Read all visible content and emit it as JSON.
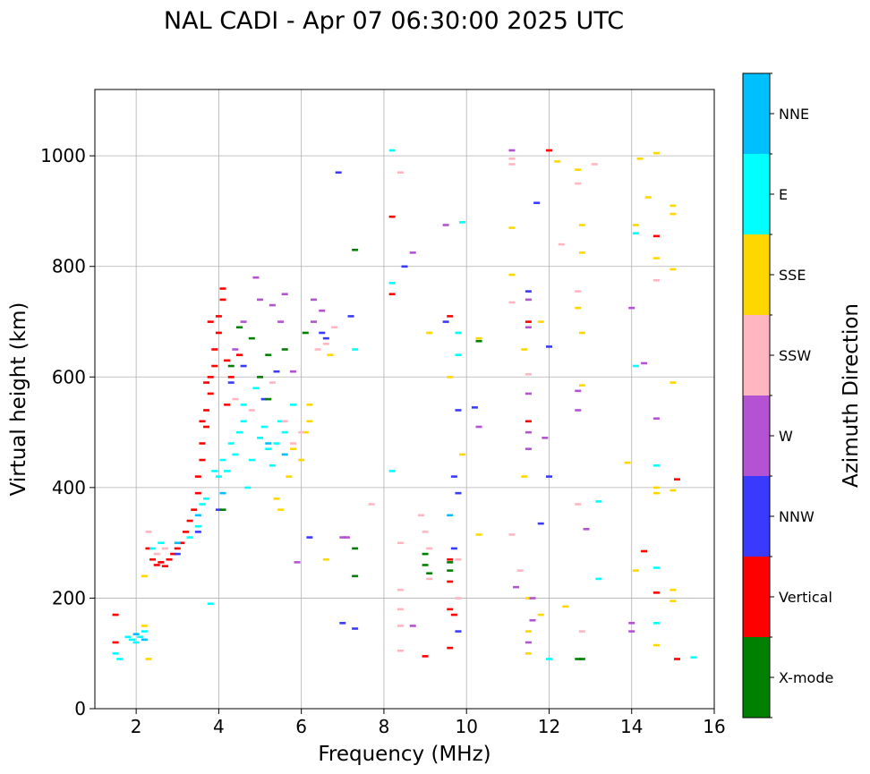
{
  "chart_data": {
    "type": "scatter",
    "title": "NAL CADI - Apr 07 06:30:00 2025 UTC",
    "xlabel": "Frequency (MHz)",
    "ylabel": "Virtual height (km)",
    "xlim": [
      1,
      16
    ],
    "ylim": [
      0,
      1120
    ],
    "xticks": [
      2,
      4,
      6,
      8,
      10,
      12,
      14,
      16
    ],
    "yticks": [
      0,
      200,
      400,
      600,
      800,
      1000
    ],
    "grid": true,
    "colorbar": {
      "title": "Azimuth Direction",
      "categories": [
        {
          "name": "X-mode",
          "color": "#008000"
        },
        {
          "name": "Vertical",
          "color": "#ff0000"
        },
        {
          "name": "NNW",
          "color": "#3a3aff"
        },
        {
          "name": "W",
          "color": "#b452d4"
        },
        {
          "name": "SSW",
          "color": "#ffb6c1"
        },
        {
          "name": "SSE",
          "color": "#ffd700"
        },
        {
          "name": "E",
          "color": "#00ffff"
        },
        {
          "name": "NNE",
          "color": "#00bfff"
        }
      ]
    },
    "series": [
      {
        "name": "Vertical",
        "points": [
          [
            1.5,
            120
          ],
          [
            1.5,
            170
          ],
          [
            2.3,
            290
          ],
          [
            2.4,
            270
          ],
          [
            2.5,
            260
          ],
          [
            2.6,
            265
          ],
          [
            2.7,
            258
          ],
          [
            2.8,
            270
          ],
          [
            2.9,
            280
          ],
          [
            3.0,
            290
          ],
          [
            3.1,
            300
          ],
          [
            3.2,
            320
          ],
          [
            3.3,
            340
          ],
          [
            3.4,
            360
          ],
          [
            3.5,
            390
          ],
          [
            3.5,
            420
          ],
          [
            3.6,
            450
          ],
          [
            3.6,
            480
          ],
          [
            3.7,
            510
          ],
          [
            3.7,
            540
          ],
          [
            3.8,
            570
          ],
          [
            3.8,
            600
          ],
          [
            3.9,
            620
          ],
          [
            3.9,
            650
          ],
          [
            4.0,
            680
          ],
          [
            4.0,
            710
          ],
          [
            4.1,
            740
          ],
          [
            4.1,
            760
          ],
          [
            4.2,
            630
          ],
          [
            4.3,
            600
          ],
          [
            4.2,
            550
          ],
          [
            4.5,
            640
          ],
          [
            3.7,
            590
          ],
          [
            3.6,
            520
          ],
          [
            3.8,
            700
          ],
          [
            8.2,
            750
          ],
          [
            8.2,
            890
          ],
          [
            9.6,
            710
          ],
          [
            9.6,
            270
          ],
          [
            9.6,
            230
          ],
          [
            9.6,
            180
          ],
          [
            9.7,
            170
          ],
          [
            9.6,
            110
          ],
          [
            9.0,
            95
          ],
          [
            11.5,
            700
          ],
          [
            11.5,
            520
          ],
          [
            12.0,
            1010
          ],
          [
            14.3,
            285
          ],
          [
            14.6,
            855
          ],
          [
            14.6,
            210
          ],
          [
            15.1,
            415
          ],
          [
            15.1,
            90
          ]
        ]
      },
      {
        "name": "E",
        "points": [
          [
            1.5,
            100
          ],
          [
            1.6,
            90
          ],
          [
            1.8,
            130
          ],
          [
            1.9,
            125
          ],
          [
            2.0,
            120
          ],
          [
            2.1,
            130
          ],
          [
            2.2,
            140
          ],
          [
            2.4,
            290
          ],
          [
            2.6,
            300
          ],
          [
            3.3,
            310
          ],
          [
            3.5,
            330
          ],
          [
            3.6,
            370
          ],
          [
            3.7,
            380
          ],
          [
            3.8,
            190
          ],
          [
            3.9,
            430
          ],
          [
            4.0,
            420
          ],
          [
            4.1,
            450
          ],
          [
            4.2,
            430
          ],
          [
            4.3,
            480
          ],
          [
            4.4,
            460
          ],
          [
            4.5,
            500
          ],
          [
            4.6,
            520
          ],
          [
            4.7,
            400
          ],
          [
            4.8,
            450
          ],
          [
            5.0,
            490
          ],
          [
            5.1,
            510
          ],
          [
            5.2,
            470
          ],
          [
            5.3,
            440
          ],
          [
            5.4,
            480
          ],
          [
            5.5,
            520
          ],
          [
            5.6,
            500
          ],
          [
            5.8,
            550
          ],
          [
            4.6,
            550
          ],
          [
            4.9,
            580
          ],
          [
            8.2,
            770
          ],
          [
            8.2,
            430
          ],
          [
            8.2,
            1010
          ],
          [
            9.8,
            680
          ],
          [
            9.8,
            640
          ],
          [
            9.9,
            880
          ],
          [
            12.0,
            90
          ],
          [
            14.1,
            860
          ],
          [
            14.1,
            620
          ],
          [
            14.6,
            440
          ],
          [
            14.6,
            255
          ],
          [
            14.6,
            155
          ],
          [
            15.5,
            93
          ],
          [
            13.2,
            235
          ],
          [
            13.2,
            375
          ],
          [
            7.3,
            650
          ]
        ]
      },
      {
        "name": "NNE",
        "points": [
          [
            2.0,
            135
          ],
          [
            2.2,
            125
          ],
          [
            3.0,
            300
          ],
          [
            3.5,
            350
          ],
          [
            4.1,
            390
          ],
          [
            5.2,
            480
          ],
          [
            5.6,
            460
          ],
          [
            9.6,
            350
          ]
        ]
      },
      {
        "name": "SSE",
        "points": [
          [
            2.2,
            150
          ],
          [
            2.3,
            90
          ],
          [
            2.2,
            240
          ],
          [
            5.4,
            380
          ],
          [
            5.5,
            360
          ],
          [
            5.7,
            420
          ],
          [
            5.8,
            470
          ],
          [
            6.0,
            450
          ],
          [
            6.1,
            500
          ],
          [
            6.2,
            520
          ],
          [
            6.2,
            550
          ],
          [
            6.6,
            270
          ],
          [
            6.7,
            640
          ],
          [
            9.1,
            680
          ],
          [
            9.6,
            600
          ],
          [
            9.9,
            460
          ],
          [
            10.3,
            315
          ],
          [
            10.3,
            670
          ],
          [
            11.1,
            870
          ],
          [
            11.1,
            785
          ],
          [
            11.4,
            420
          ],
          [
            11.4,
            650
          ],
          [
            11.5,
            200
          ],
          [
            11.5,
            140
          ],
          [
            11.5,
            100
          ],
          [
            11.8,
            700
          ],
          [
            12.2,
            990
          ],
          [
            12.7,
            975
          ],
          [
            12.7,
            725
          ],
          [
            12.8,
            875
          ],
          [
            12.8,
            825
          ],
          [
            12.8,
            680
          ],
          [
            12.8,
            585
          ],
          [
            12.4,
            185
          ],
          [
            13.9,
            445
          ],
          [
            14.1,
            875
          ],
          [
            14.1,
            250
          ],
          [
            14.2,
            995
          ],
          [
            14.4,
            925
          ],
          [
            14.6,
            1005
          ],
          [
            14.6,
            815
          ],
          [
            14.6,
            400
          ],
          [
            14.6,
            390
          ],
          [
            14.6,
            115
          ],
          [
            15.0,
            910
          ],
          [
            15.0,
            895
          ],
          [
            15.0,
            795
          ],
          [
            15.0,
            590
          ],
          [
            15.0,
            395
          ],
          [
            15.0,
            215
          ],
          [
            15.0,
            195
          ],
          [
            11.8,
            170
          ]
        ]
      },
      {
        "name": "W",
        "points": [
          [
            4.4,
            650
          ],
          [
            4.6,
            700
          ],
          [
            4.9,
            780
          ],
          [
            5.0,
            740
          ],
          [
            5.3,
            730
          ],
          [
            5.5,
            700
          ],
          [
            5.6,
            750
          ],
          [
            5.8,
            610
          ],
          [
            6.3,
            740
          ],
          [
            6.3,
            700
          ],
          [
            6.5,
            720
          ],
          [
            5.9,
            265
          ],
          [
            7.0,
            310
          ],
          [
            7.1,
            310
          ],
          [
            8.7,
            825
          ],
          [
            9.5,
            875
          ],
          [
            11.1,
            1010
          ],
          [
            11.5,
            740
          ],
          [
            11.5,
            690
          ],
          [
            11.5,
            570
          ],
          [
            11.5,
            500
          ],
          [
            11.5,
            470
          ],
          [
            11.6,
            200
          ],
          [
            11.6,
            160
          ],
          [
            11.5,
            120
          ],
          [
            11.9,
            490
          ],
          [
            12.7,
            575
          ],
          [
            12.7,
            540
          ],
          [
            12.9,
            325
          ],
          [
            14.0,
            725
          ],
          [
            14.0,
            155
          ],
          [
            14.0,
            140
          ],
          [
            14.3,
            625
          ],
          [
            14.6,
            525
          ],
          [
            11.2,
            220
          ],
          [
            10.3,
            510
          ],
          [
            8.7,
            150
          ]
        ]
      },
      {
        "name": "NNW",
        "points": [
          [
            3.0,
            280
          ],
          [
            3.5,
            320
          ],
          [
            4.0,
            360
          ],
          [
            4.3,
            590
          ],
          [
            4.6,
            620
          ],
          [
            5.1,
            560
          ],
          [
            5.4,
            610
          ],
          [
            6.5,
            680
          ],
          [
            6.6,
            670
          ],
          [
            6.9,
            970
          ],
          [
            7.2,
            710
          ],
          [
            8.5,
            800
          ],
          [
            9.5,
            700
          ],
          [
            9.7,
            420
          ],
          [
            9.8,
            540
          ],
          [
            9.8,
            390
          ],
          [
            9.7,
            290
          ],
          [
            9.8,
            140
          ],
          [
            10.2,
            545
          ],
          [
            11.7,
            915
          ],
          [
            11.5,
            755
          ],
          [
            12.0,
            655
          ],
          [
            12.0,
            420
          ],
          [
            11.8,
            335
          ],
          [
            6.2,
            310
          ],
          [
            7.0,
            155
          ],
          [
            7.3,
            145
          ]
        ]
      },
      {
        "name": "SSW",
        "points": [
          [
            2.3,
            320
          ],
          [
            2.5,
            280
          ],
          [
            2.7,
            290
          ],
          [
            4.4,
            560
          ],
          [
            4.8,
            540
          ],
          [
            5.3,
            590
          ],
          [
            5.6,
            520
          ],
          [
            5.8,
            480
          ],
          [
            6.0,
            500
          ],
          [
            6.4,
            650
          ],
          [
            6.6,
            660
          ],
          [
            6.8,
            690
          ],
          [
            8.4,
            970
          ],
          [
            8.4,
            300
          ],
          [
            8.4,
            215
          ],
          [
            8.4,
            180
          ],
          [
            8.4,
            150
          ],
          [
            8.4,
            105
          ],
          [
            8.9,
            350
          ],
          [
            9.0,
            320
          ],
          [
            9.1,
            290
          ],
          [
            9.1,
            235
          ],
          [
            9.8,
            270
          ],
          [
            9.8,
            200
          ],
          [
            11.1,
            995
          ],
          [
            11.1,
            985
          ],
          [
            11.1,
            735
          ],
          [
            11.5,
            605
          ],
          [
            11.3,
            250
          ],
          [
            11.1,
            315
          ],
          [
            12.3,
            840
          ],
          [
            12.7,
            950
          ],
          [
            12.7,
            755
          ],
          [
            13.1,
            985
          ],
          [
            14.6,
            775
          ],
          [
            12.7,
            370
          ],
          [
            12.8,
            140
          ],
          [
            7.7,
            370
          ]
        ]
      },
      {
        "name": "X-mode",
        "points": [
          [
            4.3,
            620
          ],
          [
            4.5,
            690
          ],
          [
            4.8,
            670
          ],
          [
            5.0,
            600
          ],
          [
            5.2,
            640
          ],
          [
            5.6,
            650
          ],
          [
            6.1,
            680
          ],
          [
            5.2,
            560
          ],
          [
            7.3,
            830
          ],
          [
            7.3,
            240
          ],
          [
            7.3,
            290
          ],
          [
            9.0,
            280
          ],
          [
            9.0,
            260
          ],
          [
            9.1,
            245
          ],
          [
            9.6,
            265
          ],
          [
            9.6,
            250
          ],
          [
            10.3,
            665
          ],
          [
            12.7,
            90
          ],
          [
            12.8,
            90
          ],
          [
            4.1,
            360
          ]
        ]
      }
    ]
  }
}
